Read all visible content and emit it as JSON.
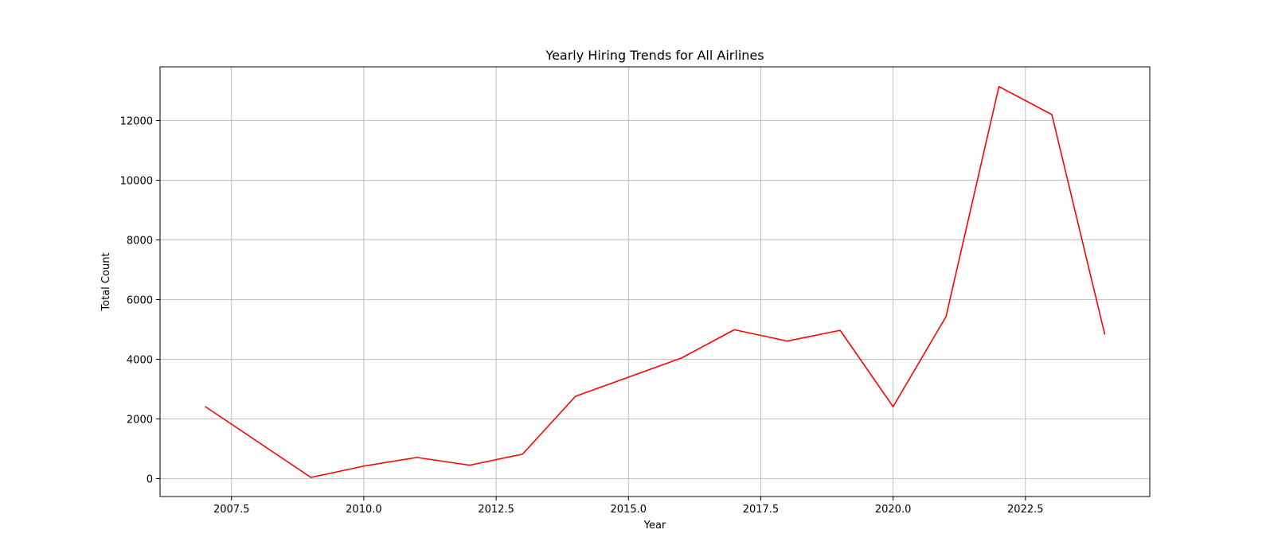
{
  "chart_data": {
    "type": "line",
    "title": "Yearly Hiring Trends for All Airlines",
    "xlabel": "Year",
    "ylabel": "Total Count",
    "xlim": [
      2006.15,
      2024.85
    ],
    "ylim": [
      -600,
      13800
    ],
    "xticks": [
      2007.5,
      2010.0,
      2012.5,
      2015.0,
      2017.5,
      2020.0,
      2022.5
    ],
    "xtick_labels": [
      "2007.5",
      "2010.0",
      "2012.5",
      "2015.0",
      "2017.5",
      "2020.0",
      "2022.5"
    ],
    "yticks": [
      0,
      2000,
      4000,
      6000,
      8000,
      10000,
      12000
    ],
    "ytick_labels": [
      "0",
      "2000",
      "4000",
      "6000",
      "8000",
      "10000",
      "12000"
    ],
    "grid": true,
    "series": [
      {
        "color": "#ff0000",
        "x": [
          2007,
          2009,
          2010,
          2011,
          2012,
          2013,
          2014,
          2015,
          2016,
          2017,
          2018,
          2019,
          2020,
          2021,
          2022,
          2023,
          2024
        ],
        "y": [
          2420,
          40,
          420,
          710,
          450,
          820,
          2760,
          3400,
          4040,
          4990,
          4610,
          4970,
          2410,
          5430,
          13140,
          12200,
          4830
        ]
      }
    ]
  }
}
